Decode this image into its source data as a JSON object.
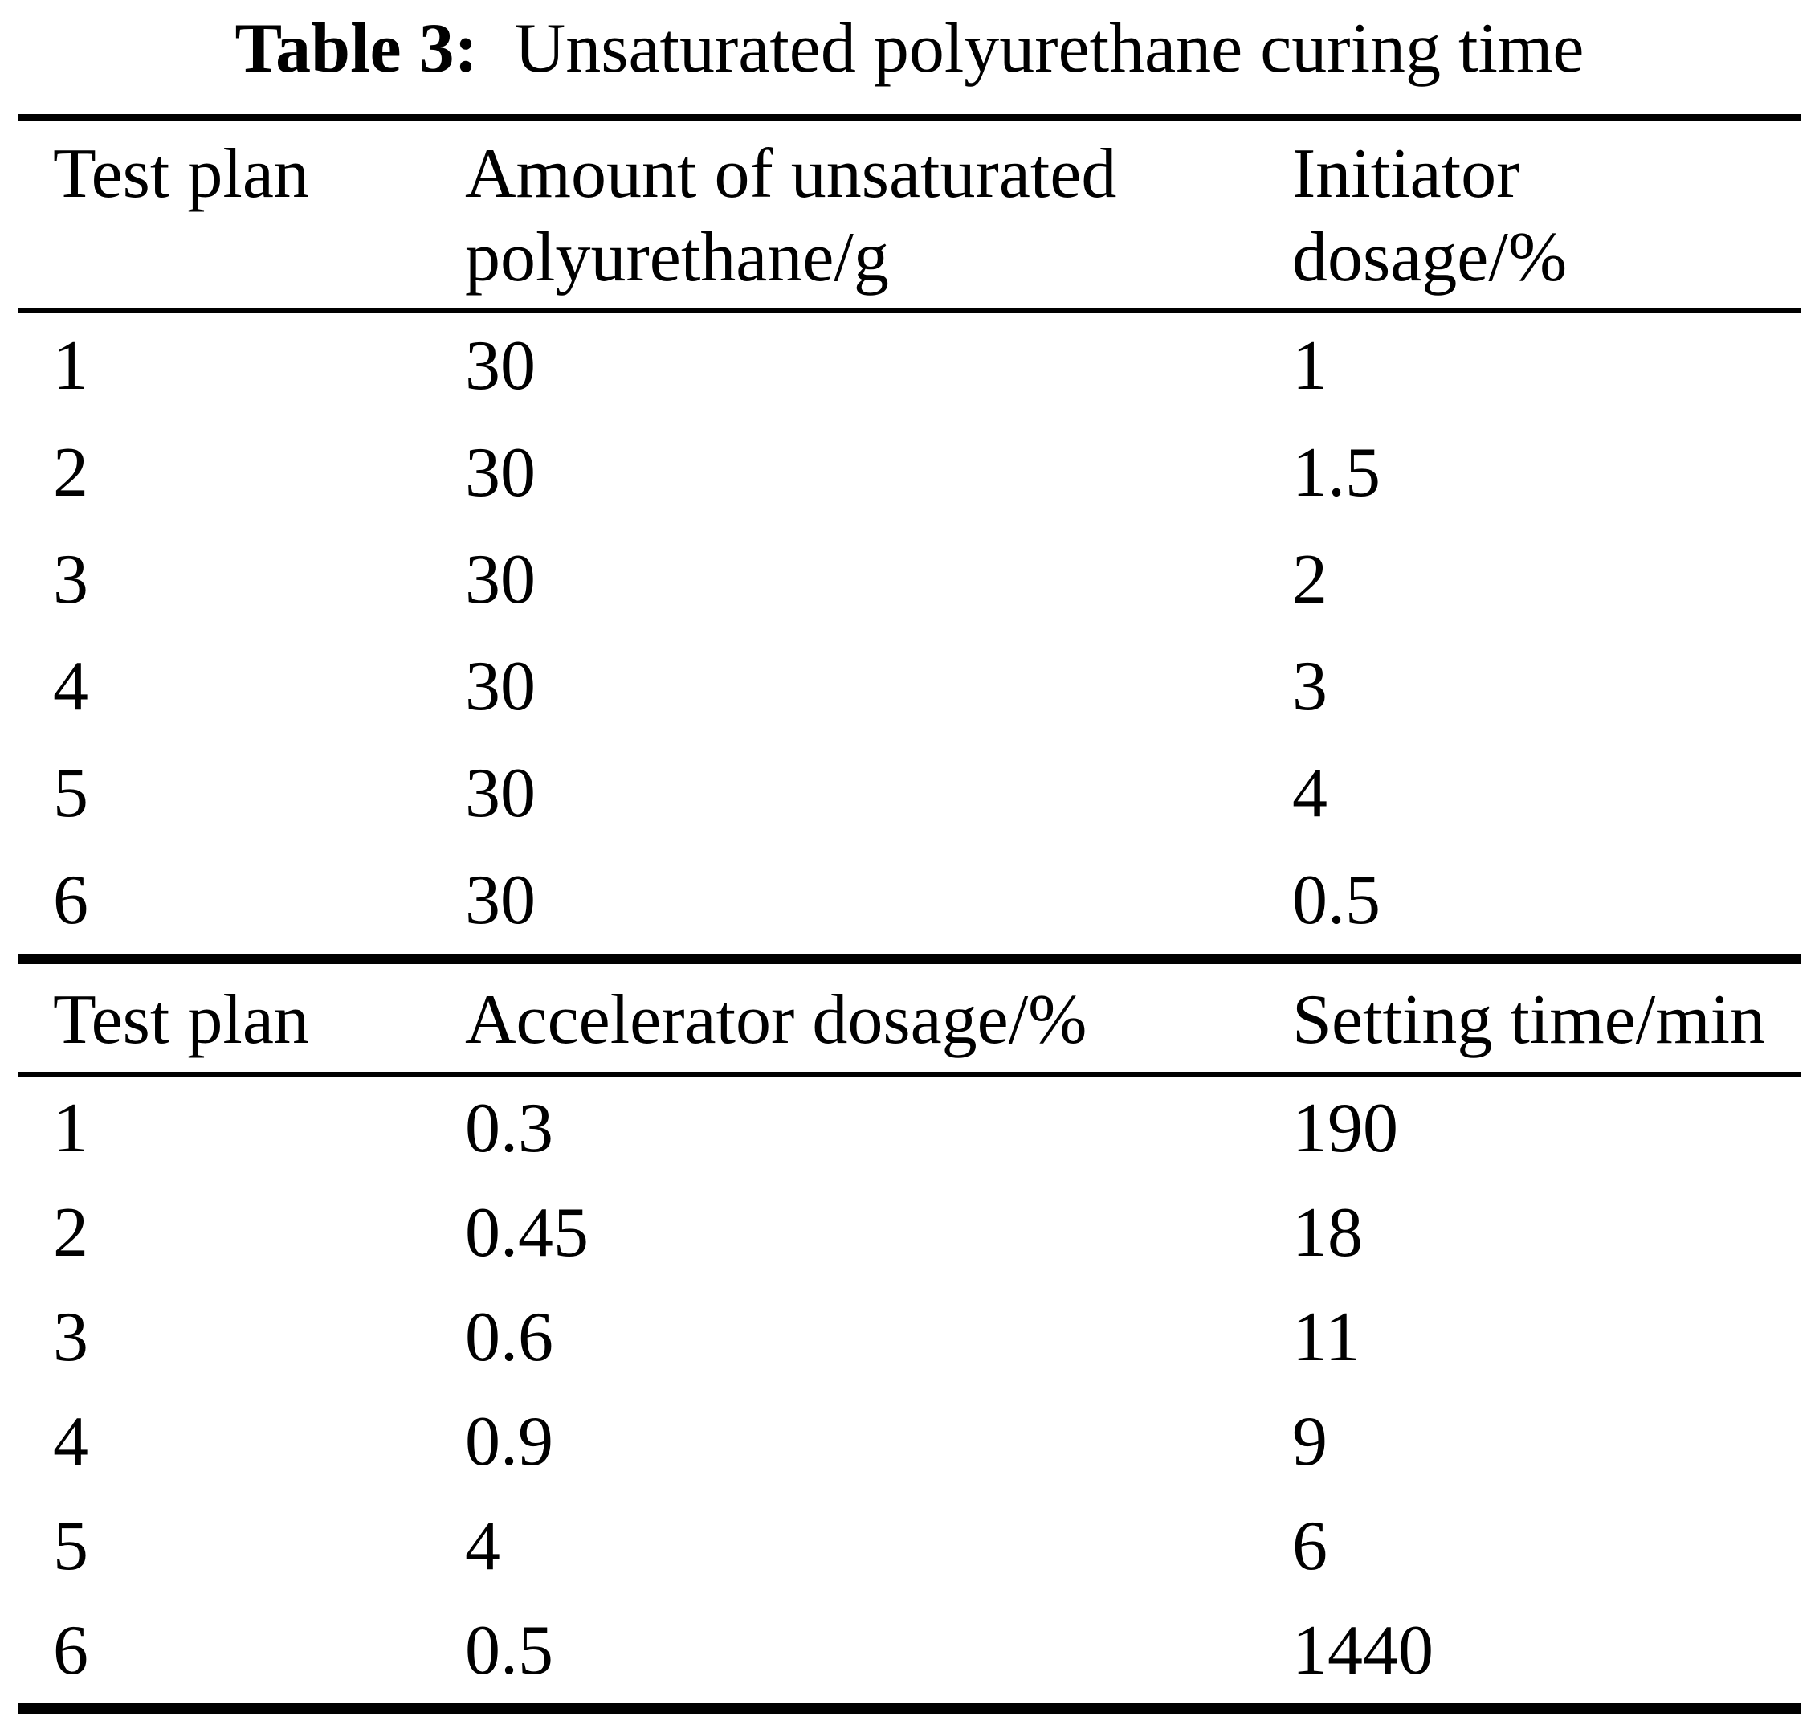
{
  "title": {
    "label": "Table 3:",
    "text": "Unsaturated polyurethane curing time"
  },
  "table1": {
    "headers": {
      "col1": "Test plan",
      "col2": "Amount of unsaturated\npolyurethane/g",
      "col3": "Initiator\ndosage/%"
    },
    "rows": [
      [
        "1",
        "30",
        "1"
      ],
      [
        "2",
        "30",
        "1.5"
      ],
      [
        "3",
        "30",
        "2"
      ],
      [
        "4",
        "30",
        "3"
      ],
      [
        "5",
        "30",
        "4"
      ],
      [
        "6",
        "30",
        "0.5"
      ]
    ]
  },
  "table2": {
    "headers": {
      "col1": "Test plan",
      "col2": "Accelerator dosage/%",
      "col3": "Setting time/min"
    },
    "rows": [
      [
        "1",
        "0.3",
        "190"
      ],
      [
        "2",
        "0.45",
        "18"
      ],
      [
        "3",
        "0.6",
        "11"
      ],
      [
        "4",
        "0.9",
        "9"
      ],
      [
        "5",
        "4",
        "6"
      ],
      [
        "6",
        "0.5",
        "1440"
      ]
    ]
  },
  "colors": {
    "text": "#000000",
    "background": "#ffffff",
    "rule": "#000000"
  }
}
